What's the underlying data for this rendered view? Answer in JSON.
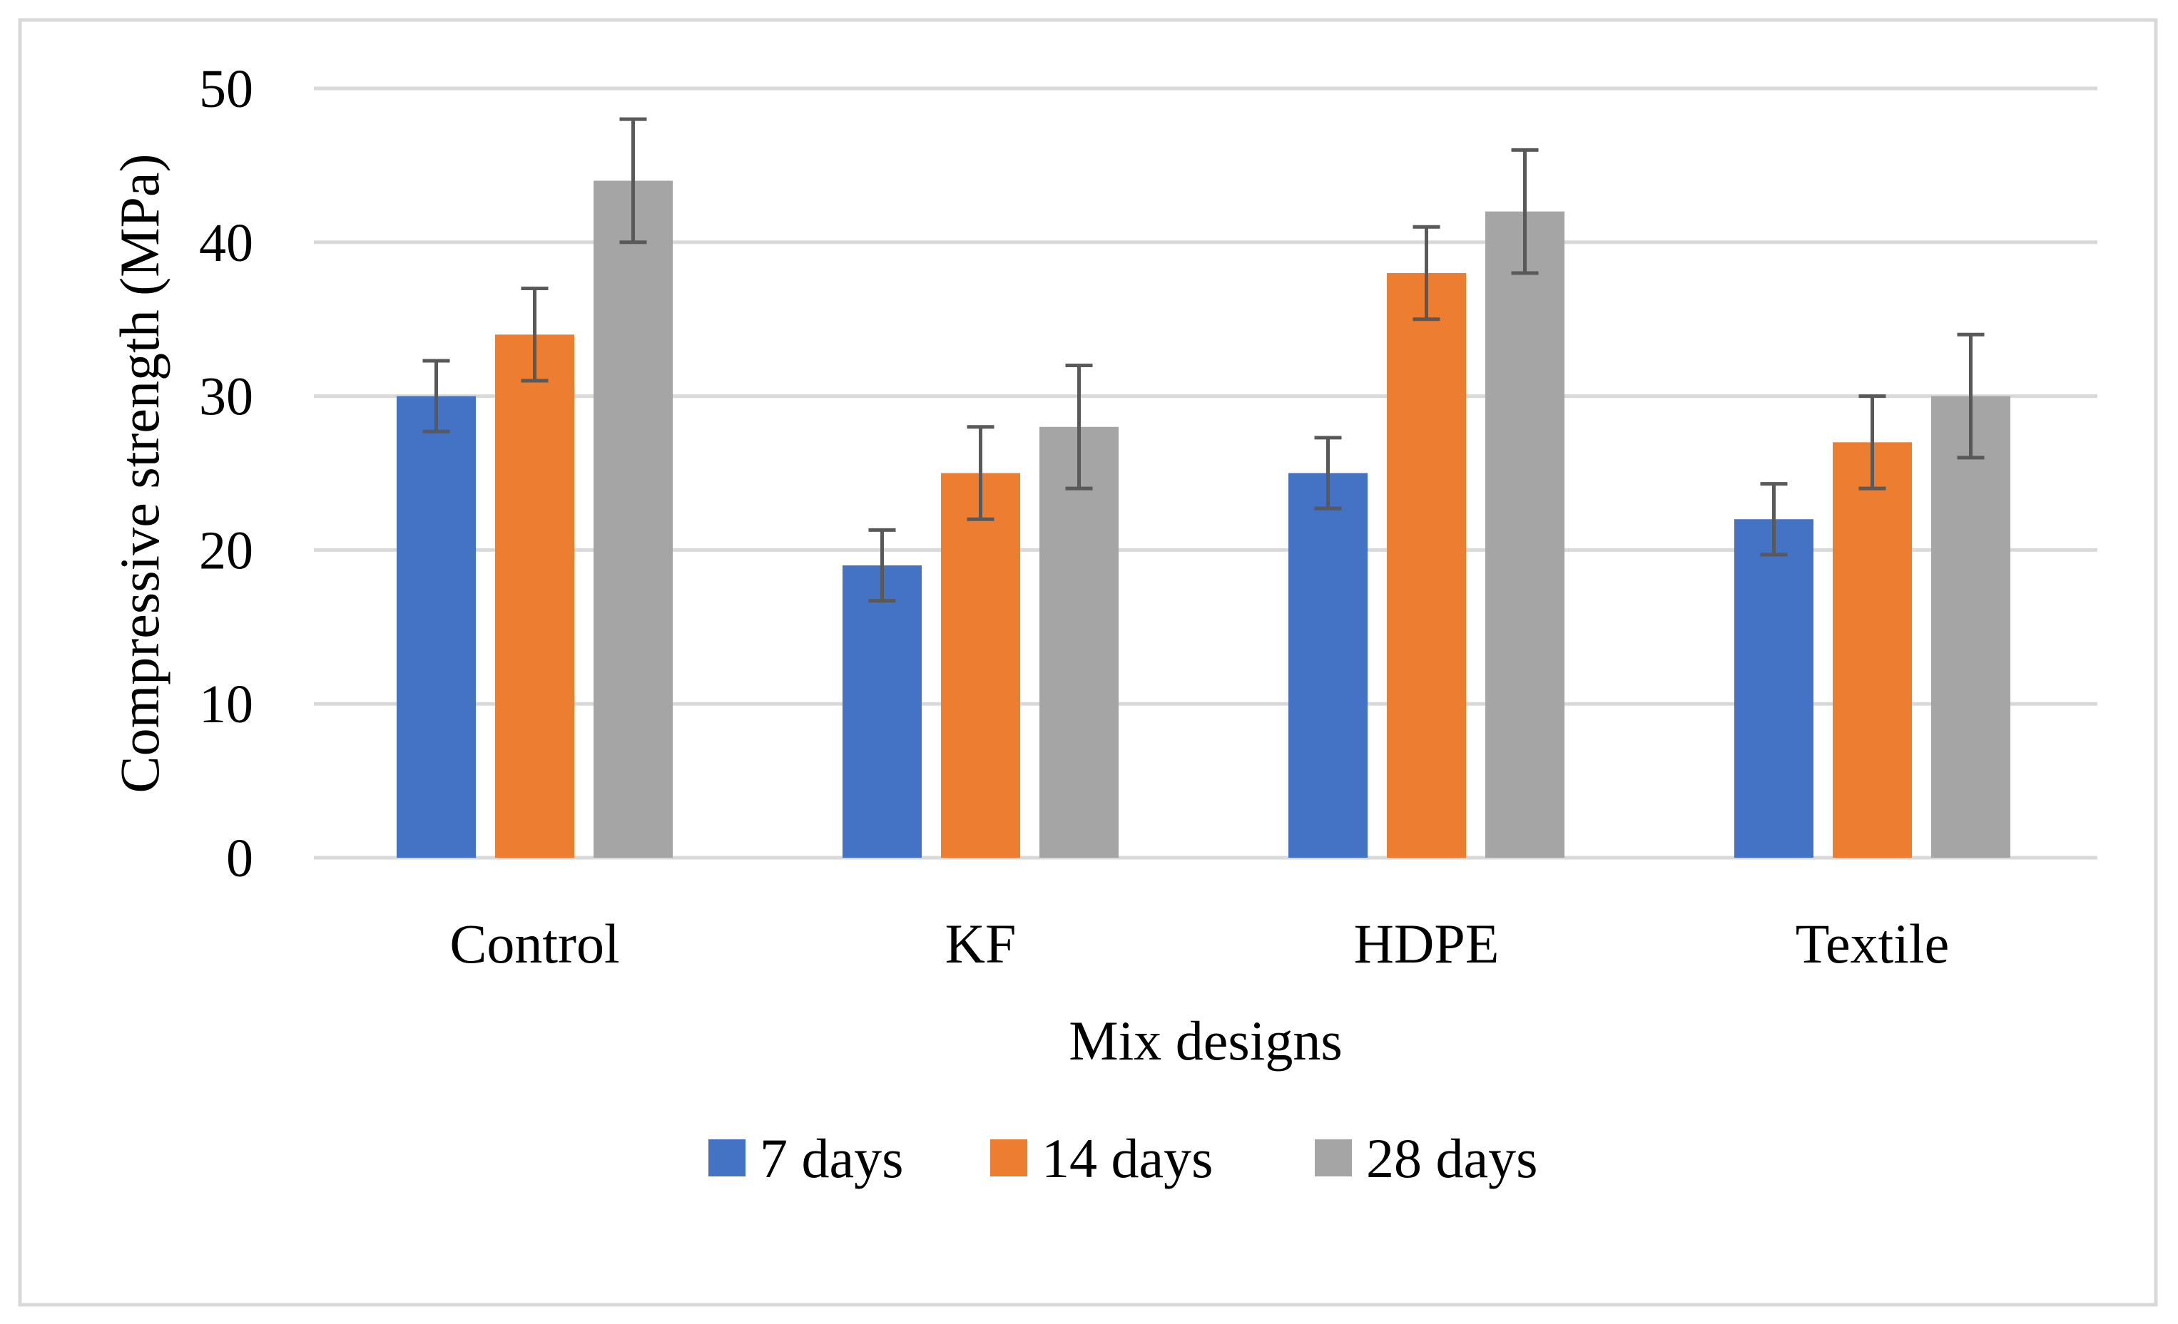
{
  "chart_data": {
    "type": "bar",
    "title": "",
    "xlabel": "Mix designs",
    "ylabel": "Compressive strength (MPa)",
    "ylim": [
      0,
      50
    ],
    "yticks": [
      "0",
      "10",
      "20",
      "30",
      "40",
      "50"
    ],
    "grid": true,
    "legend_position": "bottom",
    "categories": [
      "Control",
      "KF",
      "HDPE",
      "Textile"
    ],
    "series": [
      {
        "name": "7 days",
        "color": "#4472C4",
        "values": [
          30,
          19,
          25,
          22
        ],
        "errors": [
          2.3,
          2.3,
          2.3,
          2.3
        ]
      },
      {
        "name": "14 days",
        "color": "#ED7D31",
        "values": [
          34,
          25,
          38,
          27
        ],
        "errors": [
          3,
          3,
          3,
          3
        ]
      },
      {
        "name": "28 days",
        "color": "#A5A5A5",
        "values": [
          44,
          28,
          42,
          30
        ],
        "errors": [
          4,
          4,
          4,
          4
        ]
      }
    ]
  }
}
